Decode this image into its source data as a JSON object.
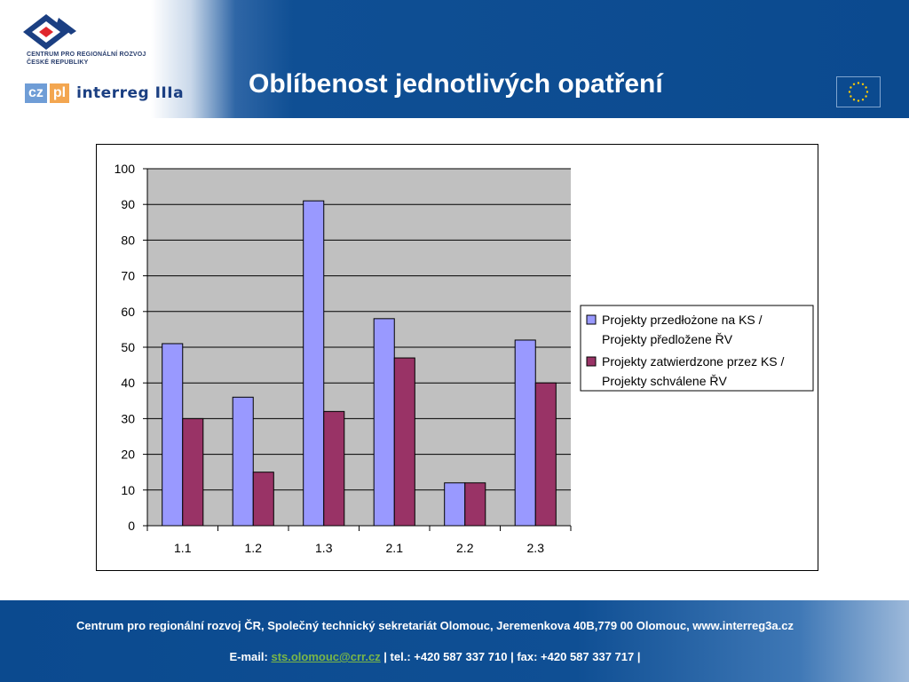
{
  "header": {
    "logo_text_line1": "CENTRUM PRO REGIONÁLNÍ ROZVOJ",
    "logo_text_line2": "ČESKÉ REPUBLIKY",
    "cz_label": "cz",
    "pl_label": "pl",
    "interreg_label": "interreg IIIa",
    "title": "Oblíbenost jednotlivých opatření"
  },
  "colors": {
    "header_blue": "#0b4a8f",
    "series1": "#9999ff",
    "series2": "#993366",
    "plot_bg": "#c0c0c0"
  },
  "chart_data": {
    "type": "bar",
    "categories": [
      "1.1",
      "1.2",
      "1.3",
      "2.1",
      "2.2",
      "2.3"
    ],
    "series": [
      {
        "name": "Projekty przedłożone na KS / Projekty předložene ŘV",
        "values": [
          51,
          36,
          91,
          58,
          12,
          52
        ]
      },
      {
        "name": "Projekty zatwierdzone przez KS / Projekty  schválene ŘV",
        "values": [
          30,
          15,
          32,
          47,
          12,
          40
        ]
      }
    ],
    "yticks": [
      0,
      10,
      20,
      30,
      40,
      50,
      60,
      70,
      80,
      90,
      100
    ],
    "ylim": [
      0,
      100
    ],
    "grid": true,
    "legend_position": "right",
    "title": "",
    "xlabel": "",
    "ylabel": ""
  },
  "footer": {
    "line1": "Centrum pro regionální rozvoj ČR, Společný technický sekretariát Olomouc, Jeremenkova 40B,779 00 Olomouc, www.interreg3a.cz",
    "email_label": "E-mail: ",
    "email": "sts.olomouc@crr.cz",
    "contacts": " | tel.: +420 587 337 710 | fax: +420 587 337 717 |"
  }
}
